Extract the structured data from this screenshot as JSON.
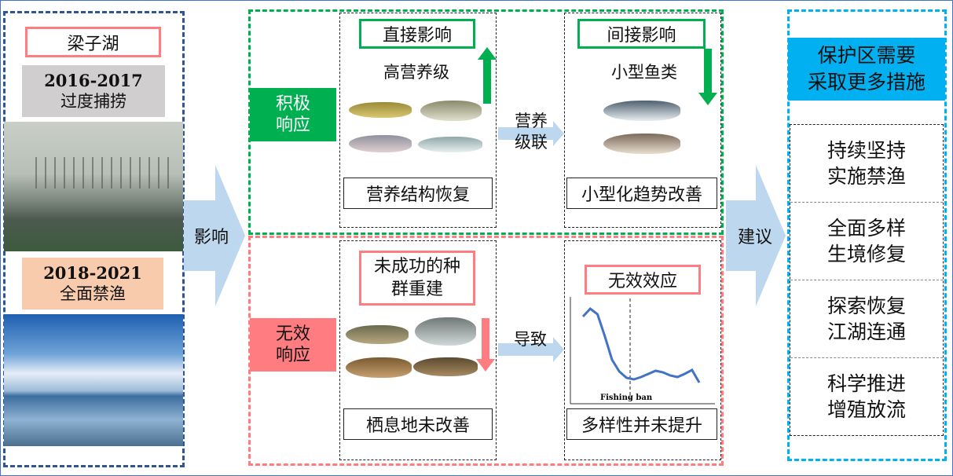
{
  "left": {
    "lake": "梁子湖",
    "period1": {
      "years": "2016-2017",
      "label": "过度捕捞"
    },
    "period2": {
      "years": "2018-2021",
      "label": "全面禁渔"
    }
  },
  "arrows": {
    "impact": "影响",
    "cascade": "营养\n级联",
    "lead_to": "导致",
    "suggest": "建议"
  },
  "positive": {
    "title": "积极\n响应",
    "direct": {
      "label": "直接影响",
      "group": "高营养级",
      "result": "营养结构恢复",
      "trend": "up"
    },
    "indirect": {
      "label": "间接影响",
      "group": "小型鱼类",
      "result": "小型化趋势改善",
      "trend": "down"
    }
  },
  "invalid": {
    "title": "无效\n响应",
    "direct": {
      "label": "未成功的种\n群重建",
      "result": "栖息地未改善",
      "trend": "down"
    },
    "indirect": {
      "label": "无效效应",
      "result": "多样性并未提升",
      "chart_label": "Fishing ban",
      "trend_values": [
        16.5,
        17.5,
        16.8,
        14,
        11,
        9.5,
        8.7,
        8.5,
        8.8,
        9.2,
        9.6,
        9.4,
        9,
        8.8,
        9.2,
        9.7,
        8.1
      ]
    }
  },
  "right": {
    "header": "保护区需要\n采取更多措施",
    "items": [
      "持续坚持\n实施禁渔",
      "全面多样\n生境修复",
      "探索恢复\n江湖连通",
      "科学推进\n增殖放流"
    ]
  },
  "colors": {
    "green": "#00b050",
    "pink": "#ff7c80",
    "blue_arrow": "#bdd7ee",
    "cyan": "#00b0f0",
    "navy": "#2f5597"
  }
}
